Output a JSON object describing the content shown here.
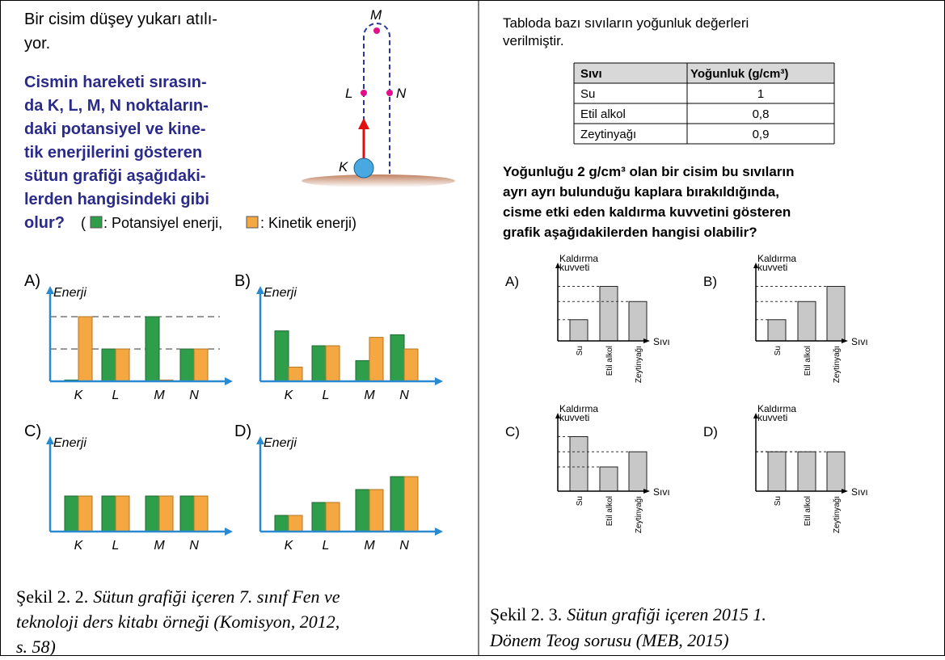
{
  "left": {
    "intro": [
      "Bir cisim düşey yukarı atılı-",
      "yor."
    ],
    "question": [
      "Cismin hareketi sırasın-",
      "da K, L, M, N noktaların-",
      "daki potansiyel ve kine-",
      "tik enerjilerini gösteren",
      "sütun grafiği aşağıdaki-",
      "lerden hangisindeki gibi",
      "olur?"
    ],
    "legend_open": "(",
    "legend_potential": ": Potansiyel enerji,",
    "legend_kinetic": ": Kinetik enerji)",
    "diagram_labels": {
      "M": "M",
      "L": "L",
      "N": "N",
      "K": "K"
    },
    "potential_color": "#2e9e4a",
    "kinetic_color": "#f5a742",
    "charts": [
      {
        "label": "A)",
        "y_label": "Enerji",
        "categories": [
          "K",
          "L",
          "M",
          "N"
        ],
        "potential": [
          0.02,
          0.5,
          1,
          0.5
        ],
        "kinetic": [
          1,
          0.5,
          0.02,
          0.5
        ],
        "guides": true
      },
      {
        "label": "B)",
        "y_label": "Enerji",
        "categories": [
          "K",
          "L",
          "M",
          "N"
        ],
        "potential": [
          0.78,
          0.55,
          0.32,
          0.72
        ],
        "kinetic": [
          0.22,
          0.55,
          0.68,
          0.5
        ],
        "guides": false
      },
      {
        "label": "C)",
        "y_label": "Enerji",
        "categories": [
          "K",
          "L",
          "M",
          "N"
        ],
        "potential": [
          0.55,
          0.55,
          0.55,
          0.55
        ],
        "kinetic": [
          0.55,
          0.55,
          0.55,
          0.55
        ],
        "guides": false
      },
      {
        "label": "D)",
        "y_label": "Enerji",
        "categories": [
          "K",
          "L",
          "M",
          "N"
        ],
        "potential": [
          0.25,
          0.45,
          0.65,
          0.85
        ],
        "kinetic": [
          0.25,
          0.45,
          0.65,
          0.85
        ],
        "guides": false
      }
    ],
    "caption": [
      "Şekil 2. 2.",
      "Sütun grafiği içeren 7. sınıf Fen ve",
      "teknoloji ders kitabı örneği (Komisyon, 2012,",
      "s. 58)"
    ]
  },
  "right": {
    "intro": [
      "Tabloda bazı sıvıların yoğunluk değerleri",
      "verilmiştir."
    ],
    "table": {
      "header": [
        "Sıvı",
        "Yoğunluk (g/cm³)"
      ],
      "rows": [
        [
          "Su",
          "1"
        ],
        [
          "Etil alkol",
          "0,8"
        ],
        [
          "Zeytinyağı",
          "0,9"
        ]
      ]
    },
    "question": [
      "Yoğunluğu 2 g/cm³ olan bir cisim bu sıvıların",
      "ayrı ayrı bulunduğu kaplara bırakıldığında,",
      "cisme etki eden kaldırma kuvvetini gösteren",
      "grafik aşağıdakilerden hangisi olabilir?"
    ],
    "bar_color": "#c8c8c8",
    "charts": [
      {
        "label": "A)",
        "y_label": [
          "Kaldırma",
          "kuvveti"
        ],
        "x_label": "Sıvı",
        "categories": [
          "Su",
          "Etil alkol",
          "Zeytinyağı"
        ],
        "values": [
          0.35,
          0.9,
          0.65
        ]
      },
      {
        "label": "B)",
        "y_label": [
          "Kaldırma",
          "kuvveti"
        ],
        "x_label": "Sıvı",
        "categories": [
          "Su",
          "Etil alkol",
          "Zeytinyağı"
        ],
        "values": [
          0.35,
          0.65,
          0.9
        ]
      },
      {
        "label": "C)",
        "y_label": [
          "Kaldırma",
          "kuvveti"
        ],
        "x_label": "Sıvı",
        "categories": [
          "Su",
          "Etil alkol",
          "Zeytinyağı"
        ],
        "values": [
          0.9,
          0.4,
          0.65
        ]
      },
      {
        "label": "D)",
        "y_label": [
          "Kaldırma",
          "kuvveti"
        ],
        "x_label": "Sıvı",
        "categories": [
          "Su",
          "Etil alkol",
          "Zeytinyağı"
        ],
        "values": [
          0.65,
          0.65,
          0.65
        ]
      }
    ],
    "caption": [
      "Şekil 2. 3.",
      "Sütun grafiği içeren 2015 1.",
      "Dönem Teog sorusu (MEB, 2015)"
    ]
  }
}
